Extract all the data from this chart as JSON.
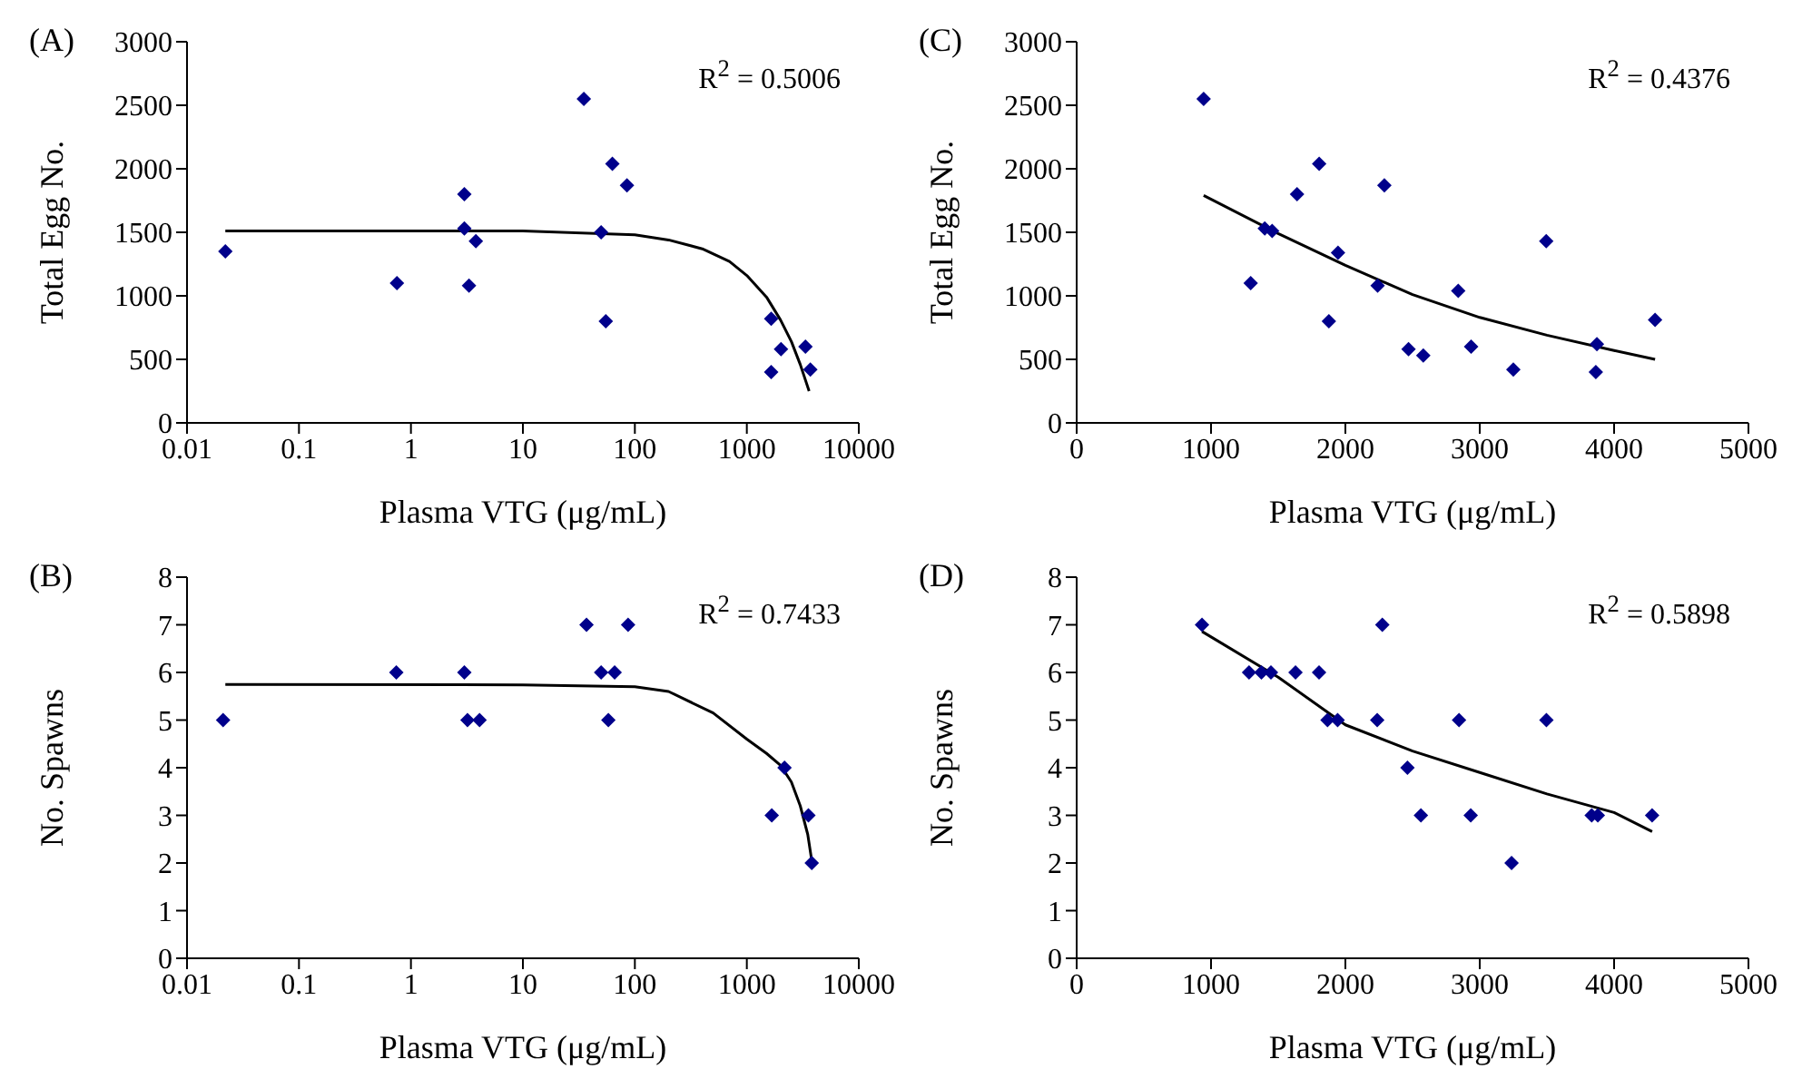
{
  "chart_data": [
    {
      "type": "scatter",
      "title": "(A)",
      "xlabel": "Plasma VTG (μg/mL)",
      "ylabel": "Total Egg No.",
      "log": "x",
      "xlim": [
        0.01,
        10000
      ],
      "xticks": [
        0.01,
        0.1,
        1,
        10,
        100,
        1000,
        10000
      ],
      "ylim": [
        0,
        3000
      ],
      "yticks": [
        0,
        500,
        1000,
        1500,
        2000,
        2500,
        3000
      ],
      "grid": false,
      "marker": "diamond",
      "annotations": [
        "R$^{2}$ = 0.5006"
      ],
      "series": [
        {
          "color": "#00008b",
          "x": [
            0.022,
            0.75,
            3.0,
            3.0,
            3.8,
            3.3,
            35,
            50,
            55,
            63,
            85,
            1650,
            1650,
            2020,
            3340,
            3690
          ],
          "values": [
            1350,
            1100,
            1800,
            1530,
            1430,
            1080,
            2550,
            1500,
            800,
            2040,
            1870,
            820,
            400,
            580,
            600,
            420
          ]
        },
        {
          "type": "line",
          "marker": "none",
          "line_style": "solid",
          "color": "#000000",
          "x": [
            0.022,
            10,
            100,
            200,
            400,
            700,
            1000,
            1500,
            2000,
            2500,
            3000,
            3600
          ],
          "values": [
            1510,
            1510,
            1480,
            1440,
            1370,
            1270,
            1160,
            990,
            810,
            640,
            460,
            250
          ]
        }
      ]
    },
    {
      "type": "scatter",
      "title": "(C)",
      "xlabel": "Plasma VTG (μg/mL)",
      "ylabel": "Total Egg No.",
      "xlim": [
        0,
        5000
      ],
      "xticks": [
        0,
        1000,
        2000,
        3000,
        4000,
        5000
      ],
      "ylim": [
        0,
        3000
      ],
      "yticks": [
        0,
        500,
        1000,
        1500,
        2000,
        2500,
        3000
      ],
      "grid": false,
      "marker": "diamond",
      "annotations": [
        "R$^{2}$ = 0.4376"
      ],
      "series": [
        {
          "color": "#00008b",
          "x": [
            945,
            1295,
            1400,
            1455,
            1640,
            1805,
            1877,
            1945,
            2240,
            2290,
            2470,
            2580,
            2840,
            2936,
            3250,
            3495,
            3864,
            3872,
            4305
          ],
          "values": [
            2550,
            1100,
            1530,
            1510,
            1800,
            2040,
            800,
            1340,
            1080,
            1870,
            580,
            530,
            1040,
            600,
            420,
            1430,
            400,
            620,
            810
          ]
        },
        {
          "type": "line",
          "marker": "none",
          "line_style": "solid",
          "color": "#000000",
          "x": [
            945,
            1500,
            2000,
            2500,
            3000,
            3500,
            4000,
            4305
          ],
          "values": [
            1790,
            1490,
            1240,
            1010,
            830,
            690,
            570,
            500
          ]
        }
      ]
    },
    {
      "type": "scatter",
      "title": "(B)",
      "xlabel": "Plasma VTG (μg/mL)",
      "ylabel": "No. Spawns",
      "log": "x",
      "xlim": [
        0.01,
        10000
      ],
      "xticks": [
        0.01,
        0.1,
        1,
        10,
        100,
        1000,
        10000
      ],
      "ylim": [
        0,
        8
      ],
      "yticks": [
        0,
        1,
        2,
        3,
        4,
        5,
        6,
        7,
        8
      ],
      "grid": false,
      "marker": "diamond",
      "annotations": [
        "R$^{2}$ = 0.7433"
      ],
      "series": [
        {
          "color": "#00008b",
          "x": [
            0.021,
            0.74,
            3.0,
            3.2,
            4.1,
            37,
            50,
            58,
            66,
            87,
            1670,
            2170,
            3550,
            3800
          ],
          "values": [
            5,
            6,
            6,
            5,
            5,
            7,
            6,
            5,
            6,
            7,
            3,
            4,
            3,
            2
          ]
        },
        {
          "type": "line",
          "marker": "none",
          "line_style": "solid",
          "color": "#000000",
          "x": [
            0.022,
            10,
            100,
            200,
            500,
            1000,
            1500,
            2000,
            2500,
            3000,
            3500,
            3800
          ],
          "values": [
            5.75,
            5.74,
            5.7,
            5.6,
            5.15,
            4.6,
            4.3,
            4.05,
            3.7,
            3.2,
            2.6,
            2.05
          ]
        }
      ]
    },
    {
      "type": "scatter",
      "title": "(D)",
      "xlabel": "Plasma VTG (μg/mL)",
      "ylabel": "No. Spawns",
      "xlim": [
        0,
        5000
      ],
      "xticks": [
        0,
        1000,
        2000,
        3000,
        4000,
        5000
      ],
      "ylim": [
        0,
        8
      ],
      "yticks": [
        0,
        1,
        2,
        3,
        4,
        5,
        6,
        7,
        8
      ],
      "grid": false,
      "marker": "diamond",
      "annotations": [
        "R$^{2}$ = 0.5898"
      ],
      "series": [
        {
          "color": "#00008b",
          "x": [
            933,
            1283,
            1375,
            1446,
            1629,
            1804,
            1867,
            1942,
            2237,
            2275,
            2462,
            2562,
            2846,
            2933,
            3237,
            3496,
            3833,
            3879,
            4283
          ],
          "values": [
            7,
            6,
            6,
            6,
            6,
            6,
            5,
            5,
            5,
            7,
            4,
            3,
            5,
            3,
            2,
            5,
            3,
            3,
            3
          ]
        },
        {
          "type": "line",
          "marker": "none",
          "line_style": "solid",
          "color": "#000000",
          "x": [
            933,
            1500,
            2000,
            2500,
            3000,
            3500,
            4000,
            4283
          ],
          "values": [
            6.86,
            5.9,
            4.9,
            4.35,
            3.9,
            3.45,
            3.06,
            2.66
          ]
        }
      ]
    }
  ]
}
